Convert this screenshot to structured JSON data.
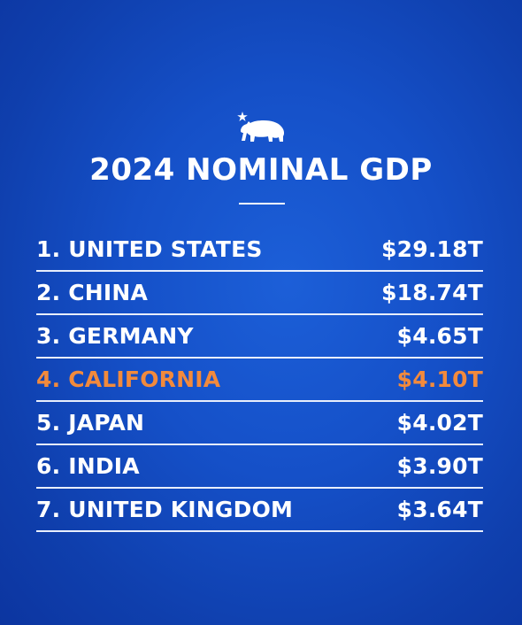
{
  "title": "2024 NOMINAL GDP",
  "colors": {
    "background": "#1550c8",
    "text": "#ffffff",
    "highlight": "#f28a3c"
  },
  "logo_icon": "california-bear-star-icon",
  "chart_data": {
    "type": "table",
    "title": "2024 NOMINAL GDP",
    "highlight_index": 3,
    "rows": [
      {
        "rank": "1.",
        "name": "UNITED STATES",
        "value": "$29.18T"
      },
      {
        "rank": "2.",
        "name": "CHINA",
        "value": "$18.74T"
      },
      {
        "rank": "3.",
        "name": "GERMANY",
        "value": "$4.65T"
      },
      {
        "rank": "4.",
        "name": "CALIFORNIA",
        "value": "$4.10T"
      },
      {
        "rank": "5.",
        "name": "JAPAN",
        "value": "$4.02T"
      },
      {
        "rank": "6.",
        "name": "INDIA",
        "value": "$3.90T"
      },
      {
        "rank": "7.",
        "name": "UNITED KINGDOM",
        "value": "$3.64T"
      }
    ]
  }
}
